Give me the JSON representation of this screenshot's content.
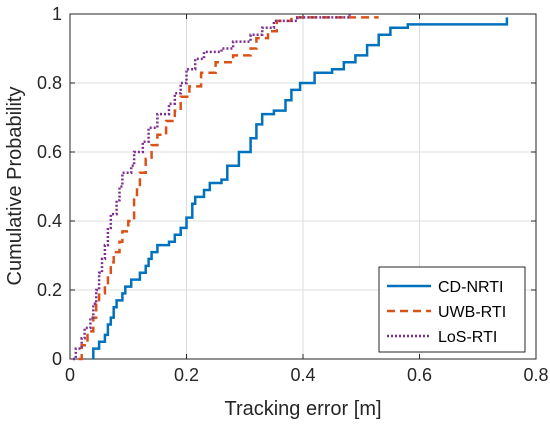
{
  "chart_data": {
    "type": "line",
    "title": "",
    "xlabel": "Tracking error [m]",
    "ylabel": "Cumulative Probability",
    "xlim": [
      0,
      0.8
    ],
    "ylim": [
      0,
      1
    ],
    "xticks": [
      "0",
      "0.2",
      "0.4",
      "0.6",
      "0.8"
    ],
    "yticks": [
      "0",
      "0.2",
      "0.4",
      "0.6",
      "0.8",
      "1"
    ],
    "grid": true,
    "legend_position": "bottom-right",
    "series": [
      {
        "name": "CD-NRTI",
        "color": "#0072BD",
        "style": "solid",
        "points": [
          [
            0.04,
            0
          ],
          [
            0.04,
            0.03
          ],
          [
            0.05,
            0.05
          ],
          [
            0.06,
            0.07
          ],
          [
            0.065,
            0.1
          ],
          [
            0.07,
            0.12
          ],
          [
            0.075,
            0.15
          ],
          [
            0.08,
            0.17
          ],
          [
            0.09,
            0.19
          ],
          [
            0.095,
            0.21
          ],
          [
            0.105,
            0.23
          ],
          [
            0.12,
            0.25
          ],
          [
            0.13,
            0.27
          ],
          [
            0.135,
            0.29
          ],
          [
            0.14,
            0.31
          ],
          [
            0.15,
            0.33
          ],
          [
            0.17,
            0.34
          ],
          [
            0.18,
            0.36
          ],
          [
            0.19,
            0.38
          ],
          [
            0.2,
            0.41
          ],
          [
            0.21,
            0.45
          ],
          [
            0.215,
            0.47
          ],
          [
            0.23,
            0.49
          ],
          [
            0.24,
            0.51
          ],
          [
            0.26,
            0.52
          ],
          [
            0.27,
            0.56
          ],
          [
            0.29,
            0.6
          ],
          [
            0.31,
            0.64
          ],
          [
            0.32,
            0.68
          ],
          [
            0.33,
            0.71
          ],
          [
            0.35,
            0.72
          ],
          [
            0.37,
            0.75
          ],
          [
            0.38,
            0.78
          ],
          [
            0.395,
            0.8
          ],
          [
            0.42,
            0.83
          ],
          [
            0.45,
            0.84
          ],
          [
            0.47,
            0.86
          ],
          [
            0.49,
            0.88
          ],
          [
            0.51,
            0.91
          ],
          [
            0.53,
            0.94
          ],
          [
            0.55,
            0.96
          ],
          [
            0.58,
            0.97
          ],
          [
            0.75,
            0.99
          ]
        ]
      },
      {
        "name": "UWB-RTI",
        "color": "#D95319",
        "style": "dashed",
        "points": [
          [
            0.015,
            0
          ],
          [
            0.02,
            0.04
          ],
          [
            0.03,
            0.08
          ],
          [
            0.04,
            0.12
          ],
          [
            0.045,
            0.16
          ],
          [
            0.05,
            0.19
          ],
          [
            0.06,
            0.22
          ],
          [
            0.065,
            0.25
          ],
          [
            0.07,
            0.28
          ],
          [
            0.075,
            0.31
          ],
          [
            0.085,
            0.34
          ],
          [
            0.09,
            0.37
          ],
          [
            0.1,
            0.4
          ],
          [
            0.11,
            0.43
          ],
          [
            0.11,
            0.47
          ],
          [
            0.115,
            0.5
          ],
          [
            0.12,
            0.54
          ],
          [
            0.13,
            0.58
          ],
          [
            0.14,
            0.62
          ],
          [
            0.15,
            0.65
          ],
          [
            0.165,
            0.69
          ],
          [
            0.18,
            0.72
          ],
          [
            0.19,
            0.76
          ],
          [
            0.205,
            0.79
          ],
          [
            0.225,
            0.83
          ],
          [
            0.25,
            0.86
          ],
          [
            0.28,
            0.88
          ],
          [
            0.31,
            0.9
          ],
          [
            0.32,
            0.93
          ],
          [
            0.34,
            0.95
          ],
          [
            0.355,
            0.98
          ],
          [
            0.38,
            0.99
          ],
          [
            0.53,
            0.99
          ]
        ]
      },
      {
        "name": "LoS-RTI",
        "color": "#7E2F8E",
        "style": "dotted",
        "points": [
          [
            0.005,
            0
          ],
          [
            0.01,
            0.03
          ],
          [
            0.02,
            0.06
          ],
          [
            0.025,
            0.09
          ],
          [
            0.035,
            0.12
          ],
          [
            0.04,
            0.16
          ],
          [
            0.045,
            0.2
          ],
          [
            0.05,
            0.25
          ],
          [
            0.055,
            0.29
          ],
          [
            0.06,
            0.33
          ],
          [
            0.065,
            0.38
          ],
          [
            0.07,
            0.42
          ],
          [
            0.08,
            0.46
          ],
          [
            0.085,
            0.5
          ],
          [
            0.09,
            0.54
          ],
          [
            0.105,
            0.56
          ],
          [
            0.11,
            0.6
          ],
          [
            0.125,
            0.63
          ],
          [
            0.135,
            0.67
          ],
          [
            0.15,
            0.71
          ],
          [
            0.17,
            0.74
          ],
          [
            0.18,
            0.77
          ],
          [
            0.19,
            0.8
          ],
          [
            0.2,
            0.84
          ],
          [
            0.215,
            0.87
          ],
          [
            0.23,
            0.89
          ],
          [
            0.26,
            0.9
          ],
          [
            0.28,
            0.92
          ],
          [
            0.31,
            0.94
          ],
          [
            0.33,
            0.96
          ],
          [
            0.35,
            0.98
          ],
          [
            0.39,
            0.99
          ],
          [
            0.48,
            1.0
          ]
        ]
      }
    ]
  }
}
